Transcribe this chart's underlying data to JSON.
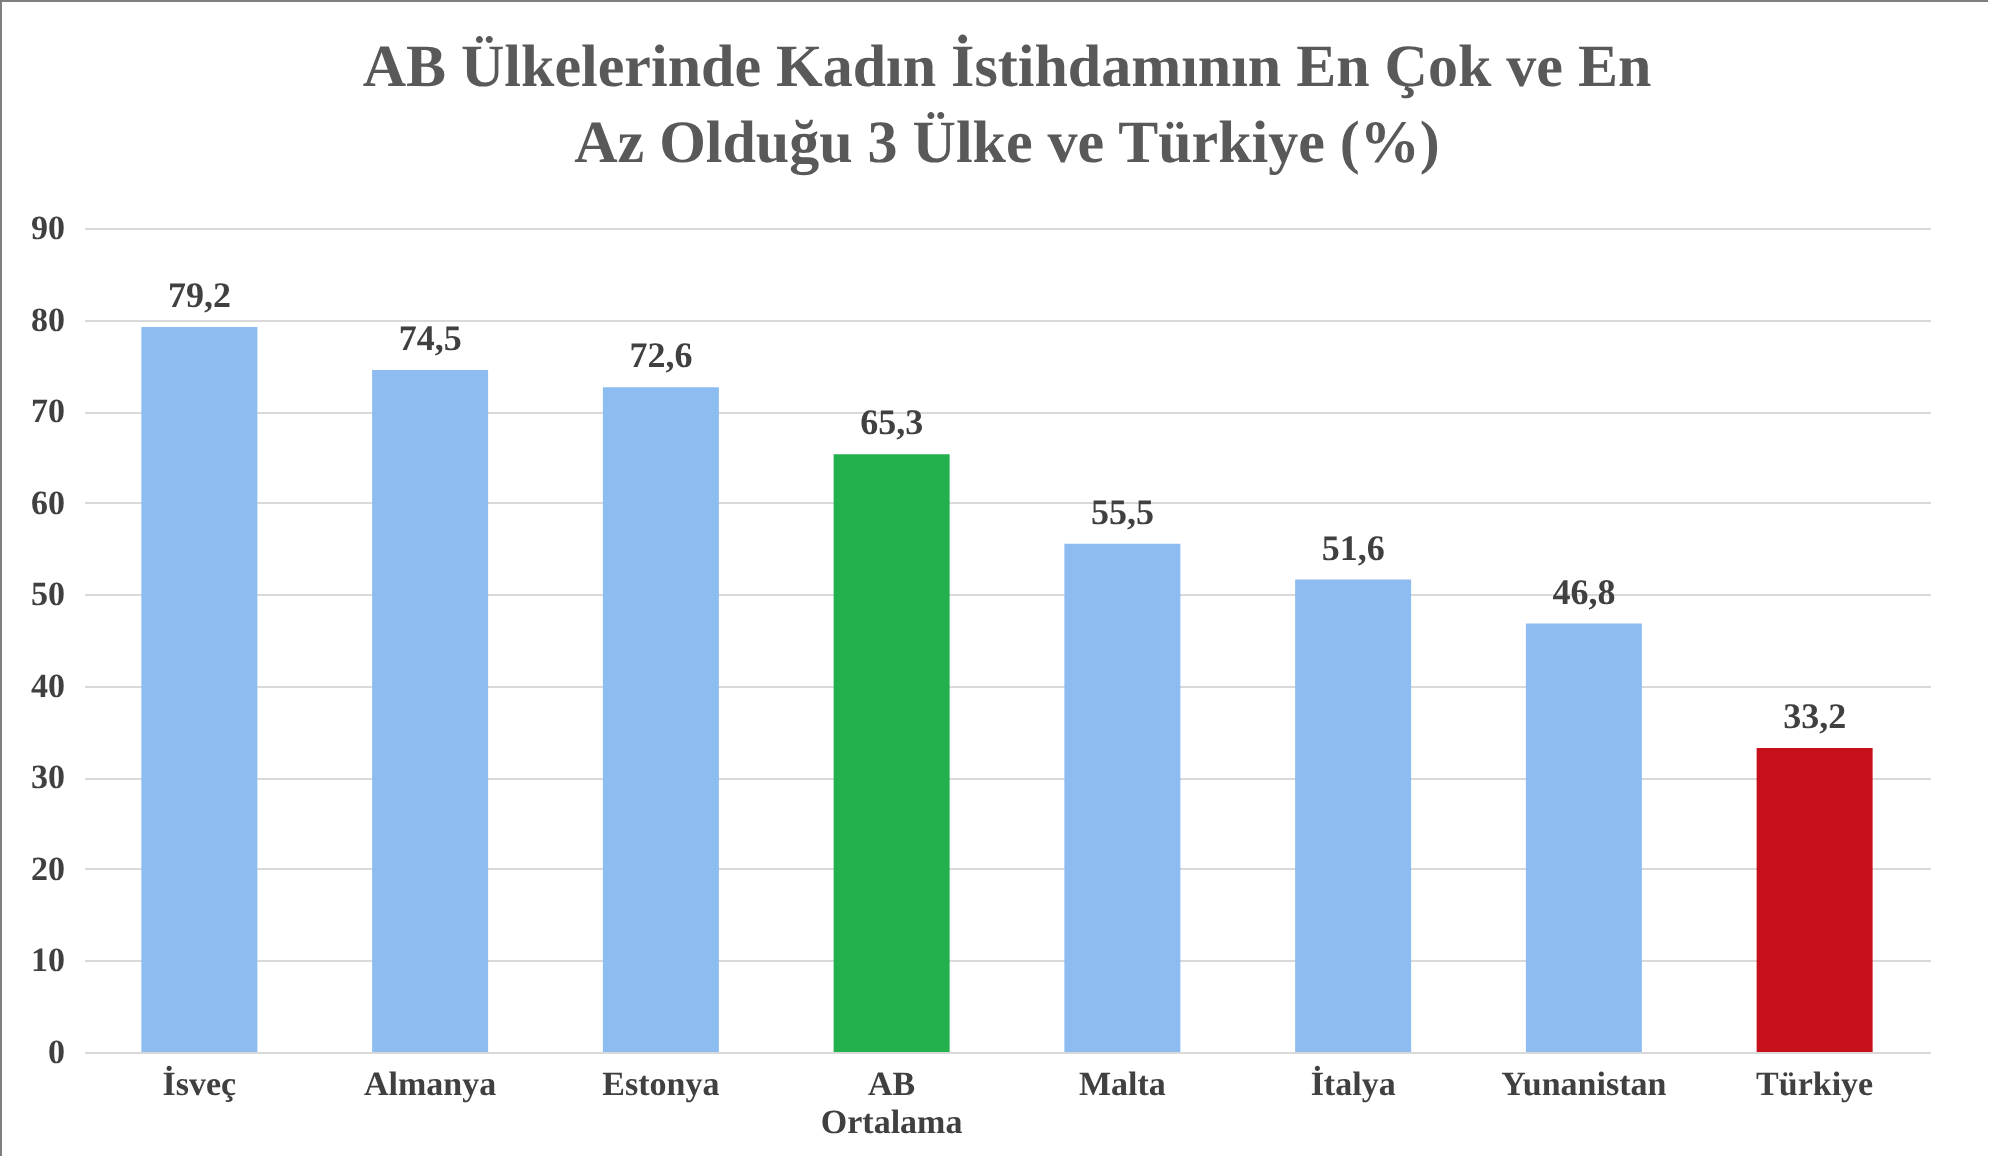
{
  "chart_data": {
    "type": "bar",
    "title": [
      "AB Ülkelerinde Kadın İstihdamının En Çok ve En",
      "Az Olduğu 3 Ülke ve Türkiye (%)"
    ],
    "categories": [
      "İsveç",
      "Almanya",
      "Estonya",
      "AB Ortalama",
      "Malta",
      "İtalya",
      "Yunanistan",
      "Türkiye"
    ],
    "values": [
      79.2,
      74.5,
      72.6,
      65.3,
      55.5,
      51.6,
      46.8,
      33.2
    ],
    "value_labels": [
      "79,2",
      "74,5",
      "72,6",
      "65,3",
      "55,5",
      "51,6",
      "46,8",
      "33,2"
    ],
    "colors": [
      "#8cbcf0",
      "#8cbcf0",
      "#8cbcf0",
      "#22b14c",
      "#8cbcf0",
      "#8cbcf0",
      "#8cbcf0",
      "#c8101c"
    ],
    "ylim": [
      0,
      90
    ],
    "yticks": [
      0,
      10,
      20,
      30,
      40,
      50,
      60,
      70,
      80,
      90
    ],
    "grid": "y"
  }
}
